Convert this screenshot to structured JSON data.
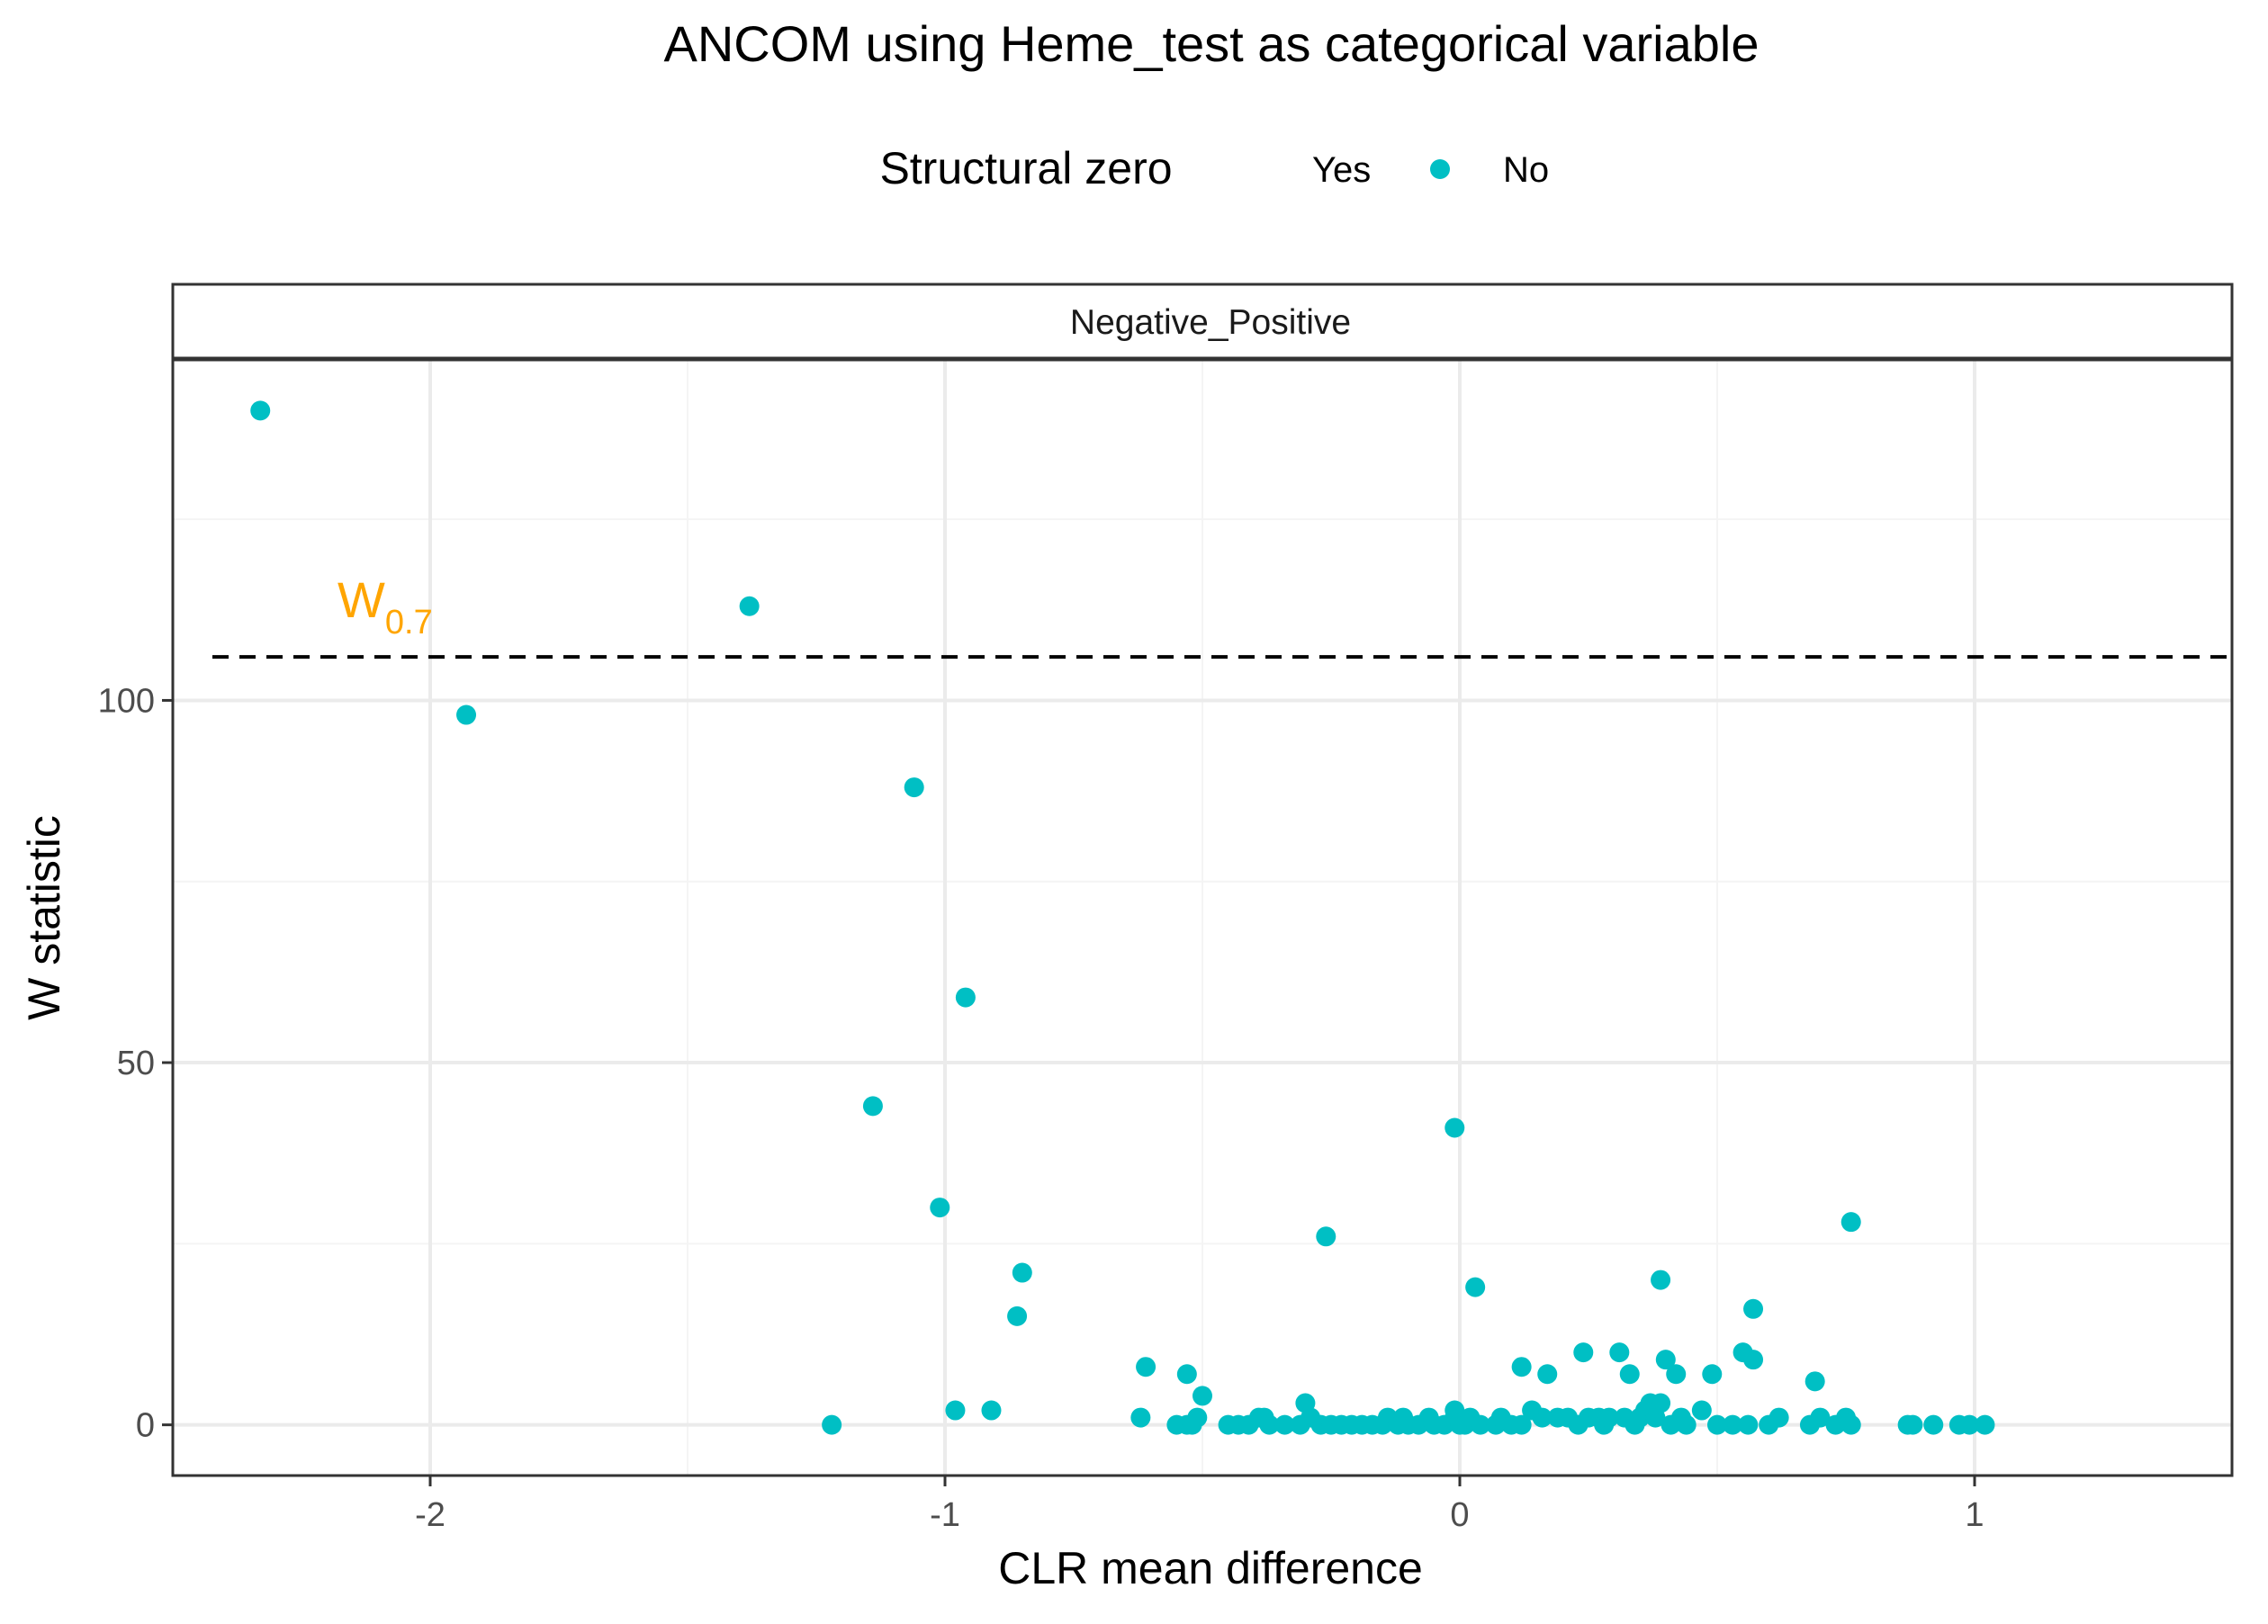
{
  "chart_data": {
    "type": "scatter",
    "title": "ANCOM using Heme_test as categorical variable",
    "xlabel": "CLR mean difference",
    "ylabel": "W statistic",
    "facet_label": "Negative_Positive",
    "xlim": [
      -2.5,
      1.5
    ],
    "ylim": [
      -7,
      147
    ],
    "x_ticks": [
      -2,
      -1,
      0,
      1
    ],
    "x_tick_labels": [
      "-2",
      "-1",
      "0",
      "1"
    ],
    "y_ticks": [
      0,
      50,
      100
    ],
    "y_tick_labels": [
      "0",
      "50",
      "100"
    ],
    "grid": true,
    "legend": {
      "title": "Structural zero",
      "placement": "top",
      "entries": [
        {
          "label": "Yes",
          "color": "#F8766D",
          "shown_marker": false
        },
        {
          "label": "No",
          "color": "#00BFC4",
          "shown_marker": true
        }
      ]
    },
    "threshold": {
      "value": 106,
      "label_main": "W",
      "label_sub": "0.7",
      "label_color": "#FFA500",
      "line_style": "dashed"
    },
    "colors": {
      "point": "#00BFC4",
      "panel_border": "#333333",
      "grid_major": "#EBEBEB",
      "grid_minor": "#F4F4F4"
    },
    "series": [
      {
        "name": "No",
        "points": [
          [
            -2.33,
            140
          ],
          [
            -1.93,
            98
          ],
          [
            -1.38,
            113
          ],
          [
            -1.06,
            88
          ],
          [
            -0.96,
            59
          ],
          [
            -1.14,
            44
          ],
          [
            -1.01,
            30
          ],
          [
            -0.85,
            21
          ],
          [
            -0.86,
            15
          ],
          [
            -0.98,
            2
          ],
          [
            -0.91,
            2
          ],
          [
            -1.22,
            0
          ],
          [
            -0.61,
            8
          ],
          [
            -0.62,
            1
          ],
          [
            -0.53,
            7
          ],
          [
            -0.5,
            4
          ],
          [
            -0.55,
            0
          ],
          [
            -0.53,
            0
          ],
          [
            -0.52,
            0
          ],
          [
            -0.51,
            1
          ],
          [
            -0.45,
            0
          ],
          [
            -0.43,
            0
          ],
          [
            -0.41,
            0
          ],
          [
            -0.39,
            1
          ],
          [
            -0.38,
            1
          ],
          [
            -0.37,
            0
          ],
          [
            -0.34,
            0
          ],
          [
            -0.31,
            0
          ],
          [
            -0.3,
            3
          ],
          [
            -0.29,
            1
          ],
          [
            -0.27,
            0
          ],
          [
            -0.26,
            26
          ],
          [
            -0.25,
            0
          ],
          [
            -0.23,
            0
          ],
          [
            -0.21,
            0
          ],
          [
            -0.19,
            0
          ],
          [
            -0.17,
            0
          ],
          [
            -0.15,
            0
          ],
          [
            -0.14,
            1
          ],
          [
            -0.12,
            0
          ],
          [
            -0.11,
            1
          ],
          [
            -0.1,
            0
          ],
          [
            -0.08,
            0
          ],
          [
            -0.06,
            1
          ],
          [
            -0.05,
            0
          ],
          [
            -0.03,
            0
          ],
          [
            -0.01,
            41
          ],
          [
            -0.01,
            2
          ],
          [
            -0.01,
            1
          ],
          [
            0.0,
            0
          ],
          [
            0.01,
            0
          ],
          [
            0.02,
            1
          ],
          [
            0.03,
            19
          ],
          [
            0.04,
            0
          ],
          [
            0.07,
            0
          ],
          [
            0.08,
            1
          ],
          [
            0.1,
            0
          ],
          [
            0.12,
            8
          ],
          [
            0.12,
            0
          ],
          [
            0.14,
            2
          ],
          [
            0.16,
            1
          ],
          [
            0.17,
            7
          ],
          [
            0.19,
            1
          ],
          [
            0.21,
            1
          ],
          [
            0.23,
            0
          ],
          [
            0.24,
            10
          ],
          [
            0.25,
            1
          ],
          [
            0.27,
            1
          ],
          [
            0.28,
            0
          ],
          [
            0.29,
            1
          ],
          [
            0.31,
            10
          ],
          [
            0.32,
            1
          ],
          [
            0.33,
            7
          ],
          [
            0.34,
            0
          ],
          [
            0.35,
            1
          ],
          [
            0.36,
            2
          ],
          [
            0.37,
            3
          ],
          [
            0.38,
            1
          ],
          [
            0.39,
            20
          ],
          [
            0.39,
            3
          ],
          [
            0.4,
            9
          ],
          [
            0.41,
            0
          ],
          [
            0.42,
            7
          ],
          [
            0.43,
            1
          ],
          [
            0.44,
            0
          ],
          [
            0.47,
            2
          ],
          [
            0.49,
            7
          ],
          [
            0.5,
            0
          ],
          [
            0.53,
            0
          ],
          [
            0.55,
            10
          ],
          [
            0.56,
            0
          ],
          [
            0.57,
            16
          ],
          [
            0.57,
            9
          ],
          [
            0.6,
            0
          ],
          [
            0.62,
            1
          ],
          [
            0.68,
            0
          ],
          [
            0.69,
            6
          ],
          [
            0.7,
            1
          ],
          [
            0.73,
            0
          ],
          [
            0.75,
            1
          ],
          [
            0.76,
            28
          ],
          [
            0.76,
            0
          ],
          [
            0.87,
            0
          ],
          [
            0.88,
            0
          ],
          [
            0.92,
            0
          ],
          [
            0.97,
            0
          ],
          [
            0.99,
            0
          ],
          [
            1.02,
            0
          ]
        ]
      }
    ]
  }
}
